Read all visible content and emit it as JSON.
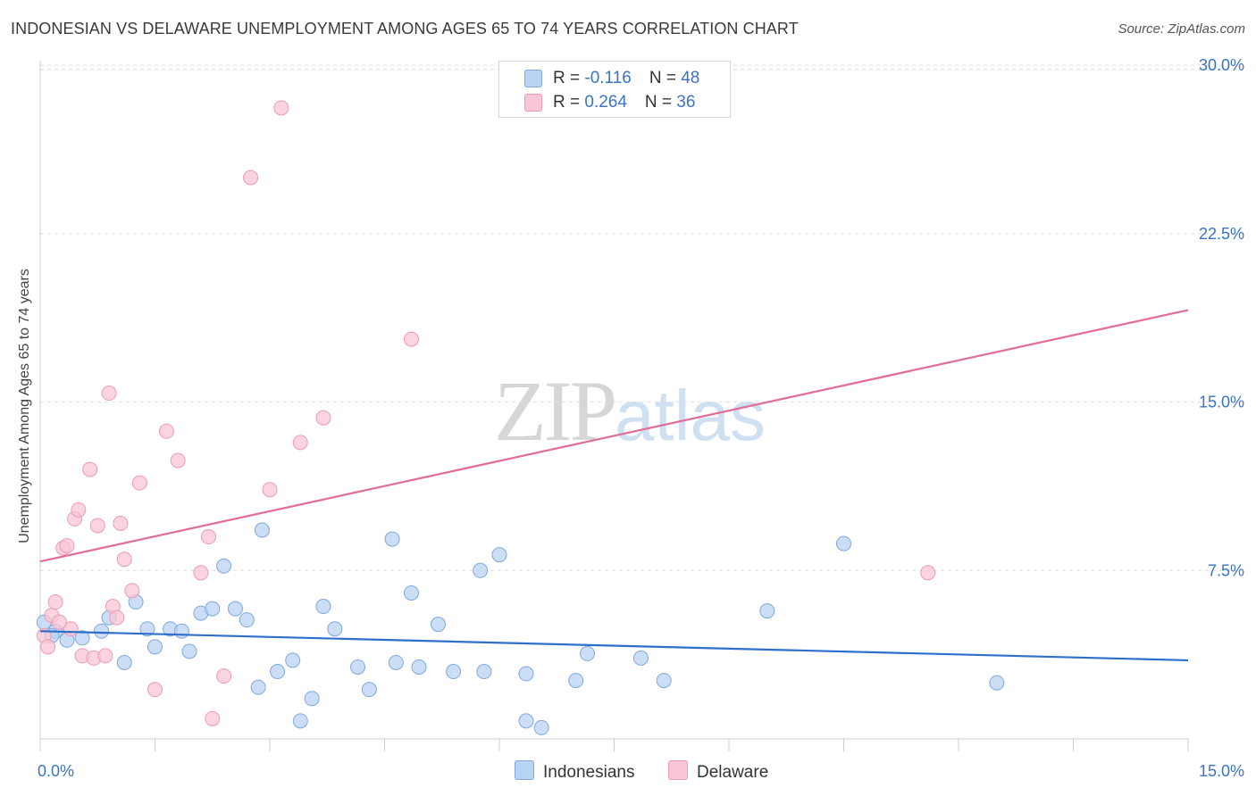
{
  "title": "INDONESIAN VS DELAWARE UNEMPLOYMENT AMONG AGES 65 TO 74 YEARS CORRELATION CHART",
  "source": "Source: ZipAtlas.com",
  "watermark": {
    "zip": "ZIP",
    "atlas": "atlas"
  },
  "legend": {
    "rows": [
      {
        "r_label": "R = ",
        "r_value": "-0.116",
        "n_label": "N = ",
        "n_value": "48"
      },
      {
        "r_label": "R = ",
        "r_value": "0.264",
        "n_label": "N = ",
        "n_value": "36"
      }
    ]
  },
  "colors": {
    "indonesians_fill": "#b9d3f3",
    "indonesians_stroke": "#7fa8dc",
    "indonesians_line": "#2f6fcc",
    "delaware_fill": "#f9c6d5",
    "delaware_stroke": "#ec9bb4",
    "delaware_line": "#e06c97",
    "axis_label": "#3a73c8",
    "grid": "#dddddd"
  },
  "chart_data": {
    "type": "scatter",
    "title": "INDONESIAN VS DELAWARE UNEMPLOYMENT AMONG AGES 65 TO 74 YEARS CORRELATION CHART",
    "xlabel": "",
    "ylabel": "Unemployment Among Ages 65 to 74 years",
    "xlim": [
      0,
      15
    ],
    "ylim": [
      0,
      31
    ],
    "x_tick_labels": [
      {
        "value": 0,
        "label": "0.0%"
      },
      {
        "value": 15,
        "label": "15.0%"
      }
    ],
    "y_tick_labels": [
      {
        "value": 7.5,
        "label": "7.5%"
      },
      {
        "value": 15,
        "label": "15.0%"
      },
      {
        "value": 22.5,
        "label": "22.5%"
      },
      {
        "value": 30,
        "label": "30.0%"
      }
    ],
    "series": [
      {
        "name": "Indonesians",
        "trend": {
          "x": [
            0,
            15
          ],
          "y": [
            4.8,
            3.5
          ]
        },
        "points": [
          [
            0.05,
            5.2
          ],
          [
            0.2,
            4.8
          ],
          [
            0.35,
            4.4
          ],
          [
            0.55,
            4.5
          ],
          [
            0.8,
            4.8
          ],
          [
            0.9,
            5.4
          ],
          [
            1.1,
            3.4
          ],
          [
            1.25,
            6.1
          ],
          [
            1.4,
            4.9
          ],
          [
            1.5,
            4.1
          ],
          [
            1.7,
            4.9
          ],
          [
            1.85,
            4.8
          ],
          [
            1.95,
            3.9
          ],
          [
            2.1,
            5.6
          ],
          [
            2.25,
            5.8
          ],
          [
            2.4,
            7.7
          ],
          [
            2.55,
            5.8
          ],
          [
            2.7,
            5.3
          ],
          [
            2.85,
            2.3
          ],
          [
            2.9,
            9.3
          ],
          [
            3.1,
            3.0
          ],
          [
            3.3,
            3.5
          ],
          [
            3.4,
            0.8
          ],
          [
            3.55,
            1.8
          ],
          [
            3.7,
            5.9
          ],
          [
            3.85,
            4.9
          ],
          [
            4.15,
            3.2
          ],
          [
            4.3,
            2.2
          ],
          [
            4.6,
            8.9
          ],
          [
            4.65,
            3.4
          ],
          [
            4.85,
            6.5
          ],
          [
            4.95,
            3.2
          ],
          [
            5.2,
            5.1
          ],
          [
            5.4,
            3.0
          ],
          [
            5.75,
            7.5
          ],
          [
            5.8,
            3.0
          ],
          [
            6.0,
            8.2
          ],
          [
            6.35,
            2.9
          ],
          [
            6.35,
            0.8
          ],
          [
            6.55,
            0.5
          ],
          [
            7.0,
            2.6
          ],
          [
            7.15,
            3.8
          ],
          [
            7.85,
            3.6
          ],
          [
            8.15,
            2.6
          ],
          [
            9.5,
            5.7
          ],
          [
            10.5,
            8.7
          ],
          [
            12.5,
            2.5
          ],
          [
            0.15,
            4.6
          ]
        ]
      },
      {
        "name": "Delaware",
        "trend": {
          "x": [
            0,
            15
          ],
          "y": [
            7.9,
            19.1
          ]
        },
        "points": [
          [
            0.05,
            4.6
          ],
          [
            0.1,
            4.1
          ],
          [
            0.15,
            5.5
          ],
          [
            0.2,
            6.1
          ],
          [
            0.3,
            8.5
          ],
          [
            0.35,
            8.6
          ],
          [
            0.4,
            4.9
          ],
          [
            0.45,
            9.8
          ],
          [
            0.5,
            10.2
          ],
          [
            0.55,
            3.7
          ],
          [
            0.65,
            12.0
          ],
          [
            0.7,
            3.6
          ],
          [
            0.75,
            9.5
          ],
          [
            0.85,
            3.7
          ],
          [
            0.9,
            15.4
          ],
          [
            0.95,
            5.9
          ],
          [
            1.0,
            5.4
          ],
          [
            1.05,
            9.6
          ],
          [
            1.1,
            8.0
          ],
          [
            1.2,
            6.6
          ],
          [
            1.3,
            11.4
          ],
          [
            1.5,
            2.2
          ],
          [
            1.65,
            13.7
          ],
          [
            1.8,
            12.4
          ],
          [
            2.1,
            7.4
          ],
          [
            2.2,
            9.0
          ],
          [
            2.25,
            0.9
          ],
          [
            2.4,
            2.8
          ],
          [
            2.75,
            25.0
          ],
          [
            3.0,
            11.1
          ],
          [
            3.15,
            28.1
          ],
          [
            3.4,
            13.2
          ],
          [
            3.7,
            14.3
          ],
          [
            4.85,
            17.8
          ],
          [
            11.6,
            7.4
          ],
          [
            0.25,
            5.2
          ]
        ]
      }
    ]
  },
  "bottom_legend": [
    {
      "label": "Indonesians"
    },
    {
      "label": "Delaware"
    }
  ]
}
